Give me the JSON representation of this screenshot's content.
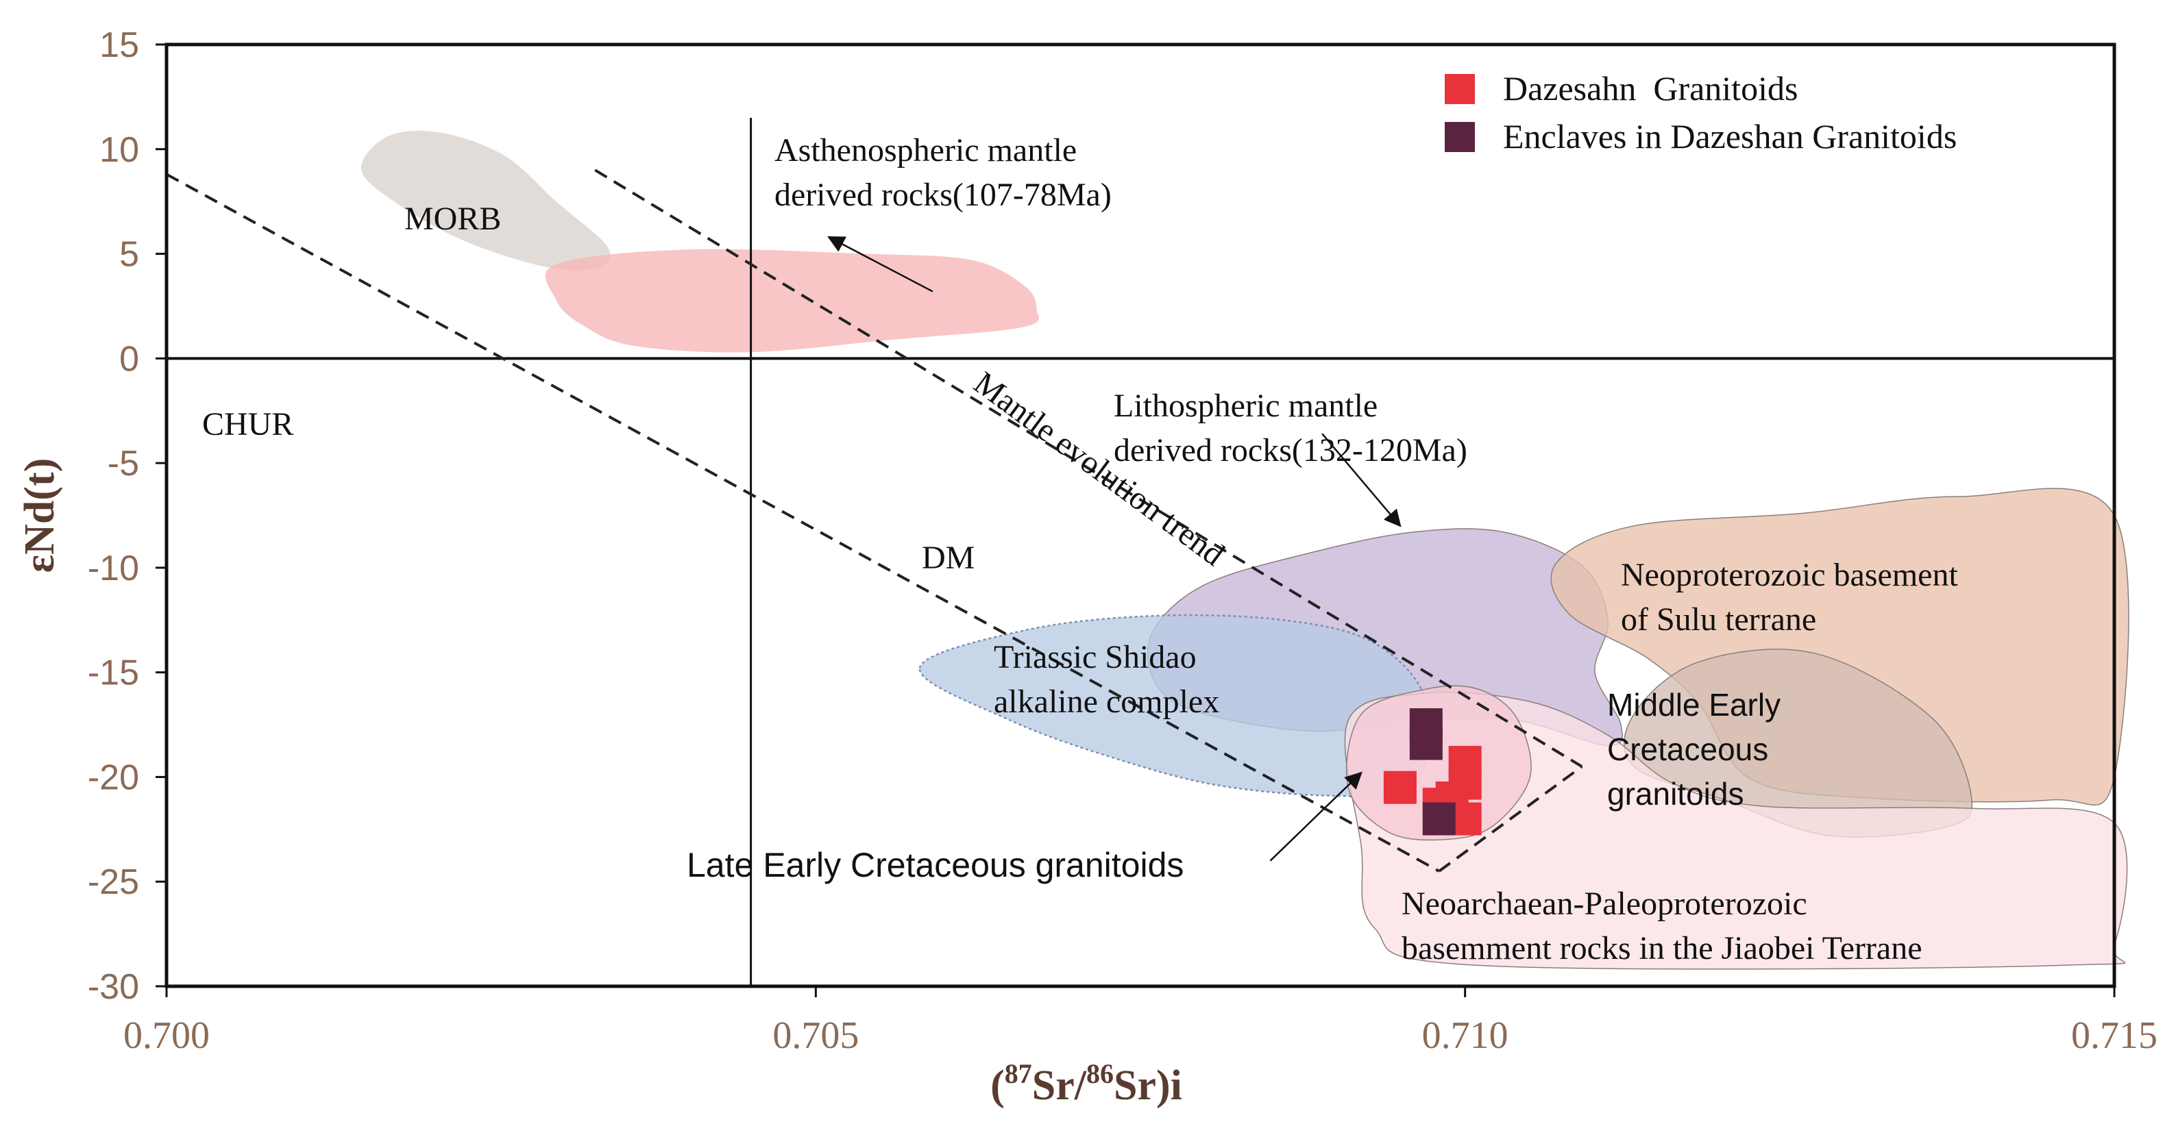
{
  "chart_data": {
    "type": "scatter",
    "title": "",
    "xlabel": "(87Sr/86Sr)i",
    "xlabel_parts": {
      "open": "(",
      "sup1": "87",
      "mid1": "Sr/",
      "sup2": "86",
      "mid2": "Sr)i"
    },
    "ylabel": "εNd(t)",
    "xlim": [
      0.7,
      0.715
    ],
    "ylim": [
      -30,
      15
    ],
    "x_ticks": [
      {
        "value": 0.7,
        "label": "0.700"
      },
      {
        "value": 0.705,
        "label": "0.705"
      },
      {
        "value": 0.71,
        "label": "0.710"
      },
      {
        "value": 0.715,
        "label": "0.715"
      }
    ],
    "y_ticks": [
      {
        "value": 15,
        "label": "15"
      },
      {
        "value": 10,
        "label": "10"
      },
      {
        "value": 5,
        "label": "5"
      },
      {
        "value": 0,
        "label": "0"
      },
      {
        "value": -5,
        "label": "-5"
      },
      {
        "value": -10,
        "label": "-10"
      },
      {
        "value": -15,
        "label": "-15"
      },
      {
        "value": -20,
        "label": "-20"
      },
      {
        "value": -25,
        "label": "-25"
      },
      {
        "value": -30,
        "label": "-30"
      }
    ],
    "reference_lines": {
      "chur_epsilon_nd": 0,
      "bulk_earth_sr": 0.7045,
      "chur_label": "CHUR",
      "dm_label": "DM"
    },
    "legend": {
      "position": "top-right",
      "entries": [
        {
          "label": "Dazesahn  Granitoids",
          "color": "#e8323c"
        },
        {
          "label": "Enclaves in Dazeshan Granitoids",
          "color": "#5a2440"
        }
      ]
    },
    "series": [
      {
        "name": "Dazesahn  Granitoids",
        "color": "#e8323c",
        "points": [
          {
            "x": 0.7095,
            "y": -20.5
          },
          {
            "x": 0.7098,
            "y": -21.3
          },
          {
            "x": 0.71,
            "y": -22.0
          },
          {
            "x": 0.71,
            "y": -19.3
          },
          {
            "x": 0.71,
            "y": -20.3
          },
          {
            "x": 0.7099,
            "y": -21.0
          }
        ]
      },
      {
        "name": "Enclaves in Dazeshan Granitoids",
        "color": "#5a2440",
        "points": [
          {
            "x": 0.7097,
            "y": -17.5
          },
          {
            "x": 0.7097,
            "y": -18.4
          },
          {
            "x": 0.7098,
            "y": -22.0
          }
        ]
      }
    ],
    "fields": [
      {
        "name": "MORB",
        "label": "MORB",
        "color": "#d8d2cd",
        "outline": [
          [
            0.7017,
            10.6
          ],
          [
            0.7021,
            10.8
          ],
          [
            0.7026,
            9.7
          ],
          [
            0.703,
            7.5
          ],
          [
            0.7034,
            5.3
          ],
          [
            0.7033,
            4.3
          ],
          [
            0.7029,
            4.4
          ],
          [
            0.7023,
            5.6
          ],
          [
            0.7018,
            7.3
          ],
          [
            0.7015,
            9.0
          ]
        ]
      },
      {
        "name": "Asthenospheric mantle derived rocks",
        "label_lines": [
          "Asthenospheric mantle",
          "derived rocks(107-78Ma)"
        ],
        "color": "#f6b6b6",
        "outline": [
          [
            0.703,
            4.5
          ],
          [
            0.704,
            5.2
          ],
          [
            0.7054,
            5.0
          ],
          [
            0.7062,
            4.7
          ],
          [
            0.7066,
            3.5
          ],
          [
            0.7067,
            2.4
          ],
          [
            0.7066,
            1.5
          ],
          [
            0.7056,
            0.9
          ],
          [
            0.7045,
            0.3
          ],
          [
            0.7036,
            0.6
          ],
          [
            0.7032,
            1.6
          ],
          [
            0.703,
            2.8
          ]
        ]
      },
      {
        "name": "Lithospheric mantle derived rocks",
        "label_lines": [
          "Lithospheric mantle",
          "derived rocks(132-120Ma)"
        ],
        "color": "#c6b6d8",
        "outline": [
          [
            0.7076,
            -13.0
          ],
          [
            0.708,
            -10.8
          ],
          [
            0.7088,
            -9.3
          ],
          [
            0.7096,
            -8.3
          ],
          [
            0.7103,
            -8.3
          ],
          [
            0.7109,
            -9.9
          ],
          [
            0.7111,
            -12.5
          ],
          [
            0.711,
            -15.0
          ],
          [
            0.7112,
            -17.5
          ],
          [
            0.7111,
            -18.5
          ],
          [
            0.7104,
            -17.3
          ],
          [
            0.7097,
            -17.3
          ],
          [
            0.7088,
            -17.8
          ],
          [
            0.7079,
            -16.8
          ],
          [
            0.7076,
            -15.3
          ]
        ]
      },
      {
        "name": "Triassic Shidao alkaline complex",
        "label_lines": [
          "Triassic Shidao",
          "alkaline complex"
        ],
        "color": "#b8cbe4",
        "outline": [
          [
            0.7058,
            -14.8
          ],
          [
            0.7066,
            -13.0
          ],
          [
            0.7076,
            -12.3
          ],
          [
            0.7086,
            -12.5
          ],
          [
            0.7093,
            -13.6
          ],
          [
            0.7097,
            -16.4
          ],
          [
            0.7096,
            -20.5
          ],
          [
            0.709,
            -20.9
          ],
          [
            0.7081,
            -20.4
          ],
          [
            0.7073,
            -19.1
          ],
          [
            0.7065,
            -17.3
          ]
        ]
      },
      {
        "name": "Neoproterozoic basement of Sulu terrane",
        "label_lines": [
          "Neoproterozoic basement",
          "of Sulu terrane"
        ],
        "color": "#e9c1aa",
        "outline": [
          [
            0.7107,
            -9.8
          ],
          [
            0.7113,
            -8.0
          ],
          [
            0.7126,
            -7.4
          ],
          [
            0.7138,
            -6.6
          ],
          [
            0.715,
            -7.5
          ],
          [
            0.715,
            -20.0
          ],
          [
            0.7145,
            -21.1
          ],
          [
            0.7131,
            -21.0
          ],
          [
            0.7122,
            -20.1
          ],
          [
            0.7118,
            -16.5
          ],
          [
            0.7114,
            -14.3
          ],
          [
            0.7108,
            -12.2
          ]
        ]
      },
      {
        "name": "Middle Early Cretaceous granitoids",
        "label_lines": [
          "Middle Early",
          "Cretaceous",
          "granitoids"
        ],
        "color": "#d3bdb2",
        "outline": [
          [
            0.7113,
            -17.0
          ],
          [
            0.7118,
            -14.5
          ],
          [
            0.7127,
            -14.1
          ],
          [
            0.7136,
            -17.2
          ],
          [
            0.7139,
            -21.0
          ],
          [
            0.7137,
            -22.4
          ],
          [
            0.7128,
            -22.8
          ],
          [
            0.712,
            -21.1
          ],
          [
            0.7113,
            -19.5
          ]
        ]
      },
      {
        "name": "Neoarchaean-Paleoproterozoic basement rocks in the Jiaobei Terrane",
        "label_lines": [
          "Neoarchaean-Paleoproterozoic",
          "basemment rocks in the Jiaobei Terrane"
        ],
        "color": "#fbe0e4",
        "outline": [
          [
            0.7091,
            -17.3
          ],
          [
            0.7097,
            -16.0
          ],
          [
            0.7105,
            -16.4
          ],
          [
            0.7111,
            -18.0
          ],
          [
            0.7116,
            -20.3
          ],
          [
            0.7123,
            -21.4
          ],
          [
            0.7139,
            -21.5
          ],
          [
            0.715,
            -22.2
          ],
          [
            0.715,
            -28.0
          ],
          [
            0.7146,
            -29.0
          ],
          [
            0.7101,
            -29.0
          ],
          [
            0.7093,
            -27.2
          ],
          [
            0.7092,
            -23.3
          ]
        ]
      },
      {
        "name": "Late Early Cretaceous granitoids",
        "label_lines": [
          "Late Early Cretaceous granitoids"
        ],
        "color": "#f5c9d3",
        "outline": [
          [
            0.7092,
            -17.0
          ],
          [
            0.7097,
            -15.8
          ],
          [
            0.7101,
            -15.8
          ],
          [
            0.7104,
            -17.2
          ],
          [
            0.7105,
            -20.0
          ],
          [
            0.7102,
            -22.4
          ],
          [
            0.7098,
            -23.0
          ],
          [
            0.7094,
            -22.6
          ],
          [
            0.7091,
            -20.5
          ]
        ]
      }
    ],
    "trend_lines": [
      {
        "name": "lower-trend",
        "points": [
          [
            0.7,
            8.8
          ],
          [
            0.7098,
            -24.5
          ]
        ]
      },
      {
        "name": "upper-trend",
        "points": [
          [
            0.7033,
            9.0
          ],
          [
            0.7109,
            -19.5
          ]
        ]
      },
      {
        "name": "trend-cap",
        "points": [
          [
            0.7098,
            -24.5
          ],
          [
            0.7109,
            -19.5
          ]
        ]
      }
    ],
    "annotations": [
      {
        "name": "mantle-evolution-trend",
        "text": "Mantle evolution trend",
        "x": 0.7062,
        "y": -1.4,
        "rotation": 36.5
      },
      {
        "name": "arrow-asthenospheric",
        "from": [
          0.7059,
          3.2
        ],
        "to": [
          0.7051,
          5.8
        ]
      },
      {
        "name": "arrow-lithospheric",
        "from": [
          0.7089,
          -3.6
        ],
        "to": [
          0.7095,
          -8.0
        ]
      },
      {
        "name": "arrow-late-early",
        "from": [
          0.7085,
          -24.0
        ],
        "to": [
          0.7092,
          -19.8
        ]
      }
    ]
  }
}
